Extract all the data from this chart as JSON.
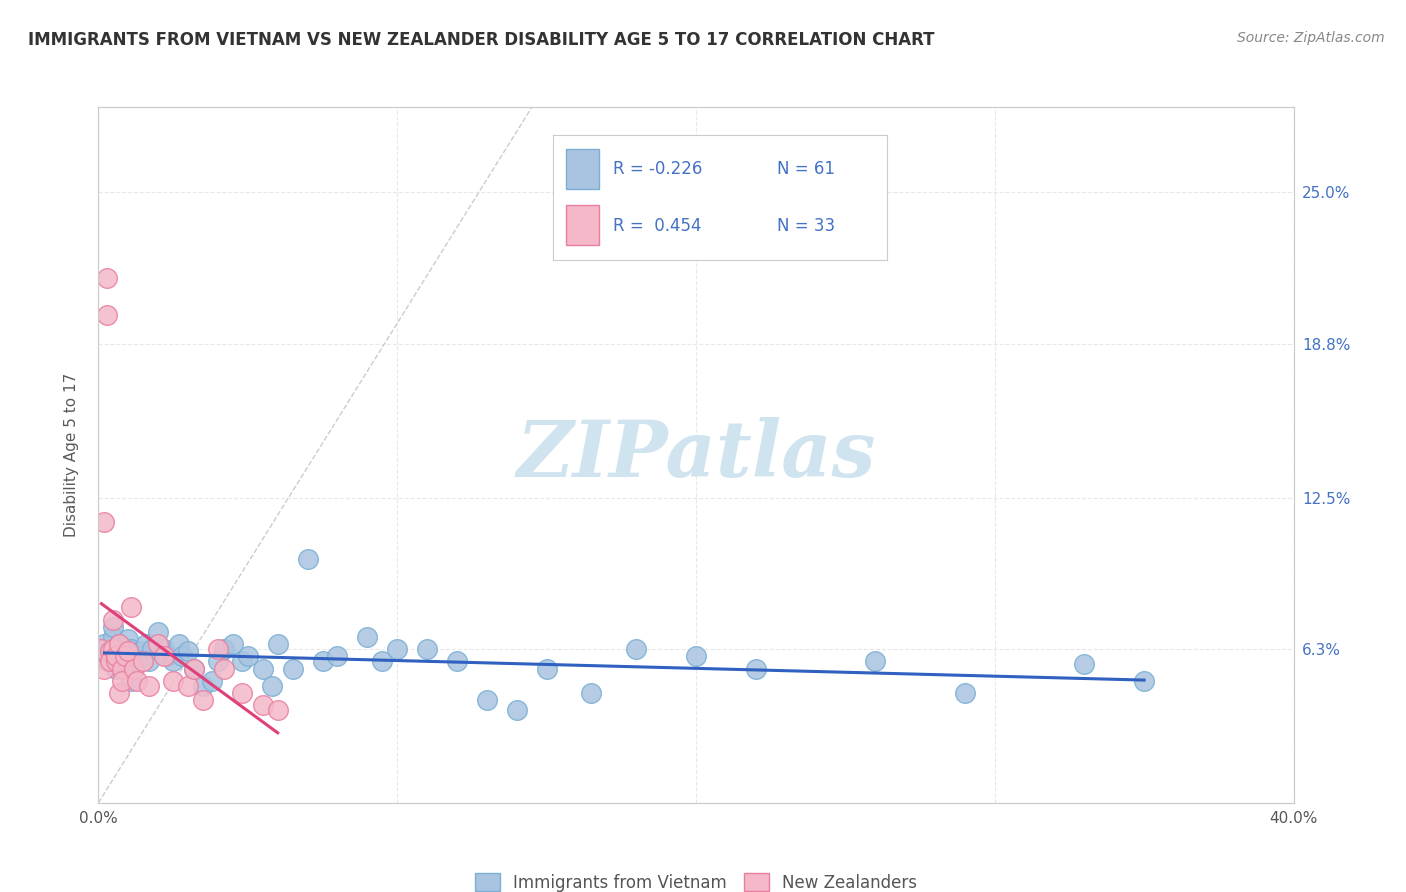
{
  "title": "IMMIGRANTS FROM VIETNAM VS NEW ZEALANDER DISABILITY AGE 5 TO 17 CORRELATION CHART",
  "source": "Source: ZipAtlas.com",
  "ylabel": "Disability Age 5 to 17",
  "xmin": 0.0,
  "xmax": 0.4,
  "ymin": 0.0,
  "ymax": 0.285,
  "yticks": [
    0.063,
    0.125,
    0.188,
    0.25
  ],
  "ytick_labels": [
    "6.3%",
    "12.5%",
    "18.8%",
    "25.0%"
  ],
  "xticks": [
    0.0,
    0.1,
    0.2,
    0.3,
    0.4
  ],
  "legend_R1": "-0.226",
  "legend_N1": "61",
  "legend_R2": "0.454",
  "legend_N2": "33",
  "series1_color": "#a8c4e0",
  "series1_edge": "#7bafd4",
  "series1_label": "Immigrants from Vietnam",
  "series2_color": "#f4b8c8",
  "series2_edge": "#e87fa0",
  "series2_label": "New Zealanders",
  "trendline1_color": "#3060c0",
  "trendline2_color": "#e0407a",
  "watermark": "ZIPatlas",
  "watermark_color": "#d0e4f0",
  "background_color": "#ffffff",
  "grid_color": "#e8e8e8",
  "title_color": "#333333",
  "axis_label_color": "#5a5a5a",
  "right_tick_color": "#4472c4",
  "legend_text_color": "#4472c4",
  "series1_x": [
    0.002,
    0.003,
    0.004,
    0.005,
    0.005,
    0.006,
    0.006,
    0.007,
    0.007,
    0.008,
    0.009,
    0.009,
    0.01,
    0.01,
    0.011,
    0.011,
    0.012,
    0.013,
    0.014,
    0.015,
    0.016,
    0.017,
    0.018,
    0.02,
    0.022,
    0.023,
    0.025,
    0.027,
    0.028,
    0.03,
    0.032,
    0.035,
    0.038,
    0.04,
    0.042,
    0.045,
    0.048,
    0.05,
    0.055,
    0.058,
    0.06,
    0.065,
    0.07,
    0.075,
    0.08,
    0.09,
    0.095,
    0.1,
    0.11,
    0.12,
    0.13,
    0.14,
    0.15,
    0.165,
    0.18,
    0.2,
    0.22,
    0.26,
    0.29,
    0.33,
    0.35
  ],
  "series1_y": [
    0.065,
    0.058,
    0.062,
    0.068,
    0.072,
    0.06,
    0.055,
    0.058,
    0.065,
    0.062,
    0.06,
    0.055,
    0.058,
    0.067,
    0.063,
    0.05,
    0.058,
    0.06,
    0.062,
    0.06,
    0.065,
    0.058,
    0.063,
    0.07,
    0.063,
    0.06,
    0.058,
    0.065,
    0.06,
    0.062,
    0.055,
    0.048,
    0.05,
    0.058,
    0.063,
    0.065,
    0.058,
    0.06,
    0.055,
    0.048,
    0.065,
    0.055,
    0.1,
    0.058,
    0.06,
    0.068,
    0.058,
    0.063,
    0.063,
    0.058,
    0.042,
    0.038,
    0.055,
    0.045,
    0.063,
    0.06,
    0.055,
    0.058,
    0.045,
    0.057,
    0.05
  ],
  "series2_x": [
    0.001,
    0.002,
    0.002,
    0.003,
    0.003,
    0.004,
    0.004,
    0.005,
    0.005,
    0.006,
    0.006,
    0.007,
    0.007,
    0.008,
    0.008,
    0.009,
    0.01,
    0.011,
    0.012,
    0.013,
    0.015,
    0.017,
    0.02,
    0.022,
    0.025,
    0.03,
    0.032,
    0.035,
    0.04,
    0.042,
    0.048,
    0.055,
    0.06
  ],
  "series2_y": [
    0.063,
    0.055,
    0.115,
    0.2,
    0.215,
    0.062,
    0.058,
    0.063,
    0.075,
    0.058,
    0.06,
    0.065,
    0.045,
    0.055,
    0.05,
    0.06,
    0.062,
    0.08,
    0.055,
    0.05,
    0.058,
    0.048,
    0.065,
    0.06,
    0.05,
    0.048,
    0.055,
    0.042,
    0.063,
    0.055,
    0.045,
    0.04,
    0.038
  ]
}
